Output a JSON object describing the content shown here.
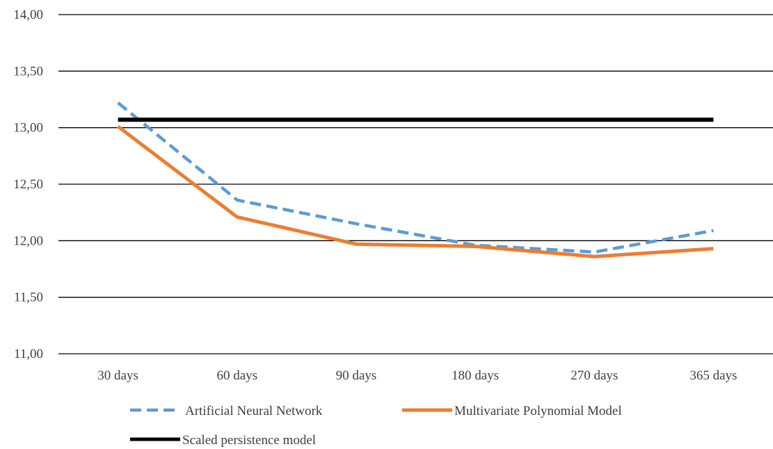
{
  "chart_data": {
    "type": "line",
    "title": "",
    "xlabel": "",
    "ylabel": "",
    "categories": [
      "30 days",
      "60 days",
      "90 days",
      "180 days",
      "270 days",
      "365 days"
    ],
    "ylim": [
      11.0,
      14.0
    ],
    "yticks": [
      "11,00",
      "11,50",
      "12,00",
      "12,50",
      "13,00",
      "13,50",
      "14,00"
    ],
    "ytick_values": [
      11.0,
      11.5,
      12.0,
      12.5,
      13.0,
      13.5,
      14.0
    ],
    "grid": true,
    "legend_position": "bottom",
    "series": [
      {
        "name": "Artificial Neural Network",
        "values": [
          13.22,
          12.36,
          12.15,
          11.96,
          11.9,
          12.09
        ],
        "color": "#5B9BD5",
        "style": "dashed"
      },
      {
        "name": "Multivariate Polynomial Model",
        "values": [
          13.01,
          12.21,
          11.97,
          11.95,
          11.86,
          11.93
        ],
        "color": "#ED7D31",
        "style": "solid"
      },
      {
        "name": "Scaled persistence model",
        "values": [
          13.07,
          13.07,
          13.07,
          13.07,
          13.07,
          13.07
        ],
        "color": "#000000",
        "style": "solid"
      }
    ]
  }
}
